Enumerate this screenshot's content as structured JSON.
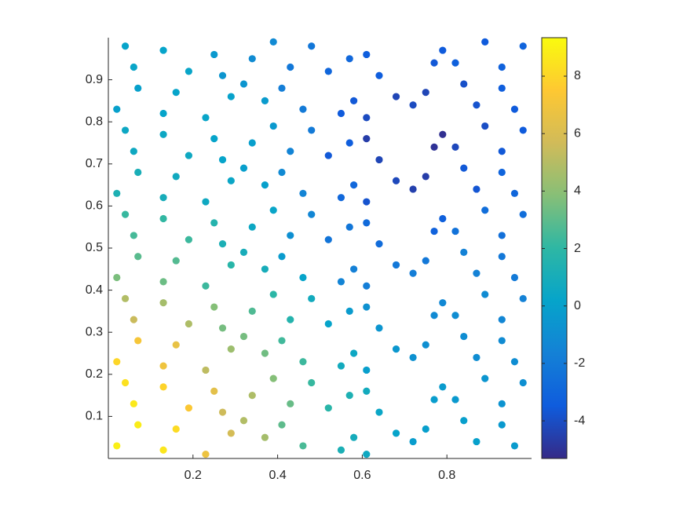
{
  "chart_data": {
    "type": "scatter",
    "xlim": [
      0,
      1
    ],
    "ylim": [
      0,
      1
    ],
    "xticks": [
      0.2,
      0.4,
      0.6,
      0.8
    ],
    "yticks": [
      0.1,
      0.2,
      0.3,
      0.4,
      0.5,
      0.6,
      0.7,
      0.8,
      0.9
    ],
    "clim": [
      -5.31,
      9.34
    ],
    "cticks": [
      -4,
      -2,
      0,
      2,
      4,
      6,
      8
    ],
    "colormap": [
      "#352a87",
      "#0f5cdd",
      "#1481d6",
      "#06a4ca",
      "#2eb7a4",
      "#87bf77",
      "#d1bb59",
      "#fec832",
      "#f9fb0e"
    ],
    "x": [
      0.02,
      0.16,
      0.23,
      0.37,
      0.41,
      0.55,
      0.68,
      0.72,
      0.84,
      0.96,
      0.06,
      0.13,
      0.27,
      0.34,
      0.48,
      0.52,
      0.61,
      0.77,
      0.89,
      0.93,
      0.02,
      0.16,
      0.23,
      0.37,
      0.41,
      0.55,
      0.68,
      0.72,
      0.84,
      0.96,
      0.06,
      0.13,
      0.27,
      0.34,
      0.48,
      0.52,
      0.61,
      0.77,
      0.89,
      0.93,
      0.02,
      0.16,
      0.23,
      0.37,
      0.41,
      0.55,
      0.68,
      0.72,
      0.84,
      0.96,
      0.06,
      0.13,
      0.27,
      0.34,
      0.48,
      0.52,
      0.61,
      0.77,
      0.89,
      0.93,
      0.02,
      0.16,
      0.23,
      0.37,
      0.41,
      0.55,
      0.68,
      0.72,
      0.84,
      0.96,
      0.06,
      0.13,
      0.27,
      0.34,
      0.48,
      0.52,
      0.61,
      0.77,
      0.89,
      0.93,
      0.02,
      0.16,
      0.23,
      0.37,
      0.41,
      0.55,
      0.68,
      0.72,
      0.84,
      0.96,
      0.06,
      0.13,
      0.27,
      0.34,
      0.48,
      0.52,
      0.61,
      0.77,
      0.89,
      0.93,
      0.07,
      0.13,
      0.29,
      0.32,
      0.46,
      0.58,
      0.61,
      0.75,
      0.87,
      0.93,
      0.04,
      0.19,
      0.25,
      0.39,
      0.43,
      0.57,
      0.64,
      0.79,
      0.82,
      0.98,
      0.07,
      0.13,
      0.29,
      0.32,
      0.46,
      0.58,
      0.61,
      0.75,
      0.87,
      0.93,
      0.04,
      0.19,
      0.25,
      0.39,
      0.43,
      0.57,
      0.64,
      0.79,
      0.82,
      0.98,
      0.07,
      0.13,
      0.29,
      0.32,
      0.46,
      0.58,
      0.61,
      0.75,
      0.87,
      0.93,
      0.04,
      0.19,
      0.25,
      0.39,
      0.43,
      0.57,
      0.64,
      0.79,
      0.82,
      0.98,
      0.07,
      0.13,
      0.29,
      0.32,
      0.46,
      0.58,
      0.61,
      0.75,
      0.87,
      0.93,
      0.04,
      0.19,
      0.25,
      0.39,
      0.43,
      0.57,
      0.64,
      0.79,
      0.82,
      0.98,
      0.07,
      0.13,
      0.29,
      0.32,
      0.46,
      0.58,
      0.61,
      0.75,
      0.87,
      0.93,
      0.04,
      0.19,
      0.25,
      0.39,
      0.43,
      0.57,
      0.64,
      0.79,
      0.82,
      0.98
    ],
    "y": [
      0.03,
      0.07,
      0.01,
      0.05,
      0.08,
      0.02,
      0.06,
      0.04,
      0.09,
      0.03,
      0.13,
      0.17,
      0.11,
      0.15,
      0.18,
      0.12,
      0.16,
      0.14,
      0.19,
      0.13,
      0.23,
      0.27,
      0.21,
      0.25,
      0.28,
      0.22,
      0.26,
      0.24,
      0.29,
      0.23,
      0.33,
      0.37,
      0.31,
      0.35,
      0.38,
      0.32,
      0.36,
      0.34,
      0.39,
      0.33,
      0.43,
      0.47,
      0.41,
      0.45,
      0.48,
      0.42,
      0.46,
      0.44,
      0.49,
      0.43,
      0.53,
      0.57,
      0.51,
      0.55,
      0.58,
      0.52,
      0.56,
      0.54,
      0.59,
      0.53,
      0.63,
      0.67,
      0.61,
      0.65,
      0.68,
      0.62,
      0.66,
      0.64,
      0.69,
      0.63,
      0.73,
      0.77,
      0.71,
      0.75,
      0.78,
      0.72,
      0.76,
      0.74,
      0.79,
      0.73,
      0.83,
      0.87,
      0.81,
      0.85,
      0.88,
      0.82,
      0.86,
      0.84,
      0.89,
      0.83,
      0.93,
      0.97,
      0.91,
      0.95,
      0.98,
      0.92,
      0.96,
      0.94,
      0.99,
      0.93,
      0.08,
      0.02,
      0.06,
      0.09,
      0.03,
      0.05,
      0.01,
      0.07,
      0.04,
      0.08,
      0.18,
      0.12,
      0.16,
      0.19,
      0.13,
      0.15,
      0.11,
      0.17,
      0.14,
      0.18,
      0.28,
      0.22,
      0.26,
      0.29,
      0.23,
      0.25,
      0.21,
      0.27,
      0.24,
      0.28,
      0.38,
      0.32,
      0.36,
      0.39,
      0.33,
      0.35,
      0.31,
      0.37,
      0.34,
      0.38,
      0.48,
      0.42,
      0.46,
      0.49,
      0.43,
      0.45,
      0.41,
      0.47,
      0.44,
      0.48,
      0.58,
      0.52,
      0.56,
      0.59,
      0.53,
      0.55,
      0.51,
      0.57,
      0.54,
      0.58,
      0.68,
      0.62,
      0.66,
      0.69,
      0.63,
      0.65,
      0.61,
      0.67,
      0.64,
      0.68,
      0.78,
      0.72,
      0.76,
      0.79,
      0.73,
      0.75,
      0.71,
      0.77,
      0.74,
      0.78,
      0.88,
      0.82,
      0.86,
      0.89,
      0.83,
      0.85,
      0.81,
      0.87,
      0.84,
      0.88,
      0.98,
      0.92,
      0.96,
      0.99,
      0.93,
      0.95,
      0.91,
      0.97,
      0.94,
      0.98
    ],
    "color_values": [
      8.9,
      8.2,
      6.8,
      4.6,
      3,
      1.2,
      0.2,
      -0.2,
      -0.1,
      -0.3,
      8.7,
      7.9,
      5.6,
      4.8,
      2.2,
      1.8,
      0.8,
      -0.2,
      -0.6,
      -0.7,
      8,
      6.6,
      5.2,
      3.4,
      2.4,
      0.8,
      -0.5,
      -0.8,
      -1,
      -1,
      5.5,
      4.6,
      3.5,
      2.7,
      0.8,
      0.2,
      -0.8,
      -1.2,
      -1.1,
      -1.4,
      3.6,
      2.8,
      2.3,
      1,
      -0.3,
      -1.5,
      -2.1,
      -1.8,
      -1.6,
      -2,
      2.5,
      2.1,
      1.2,
      0.5,
      -1.4,
      -2.3,
      -2.8,
      -3.2,
      -2.6,
      -2.5,
      1.3,
      0.7,
      0.6,
      0,
      -1.2,
      -2.9,
      -4.2,
      -4.5,
      -3.6,
      -3,
      0.6,
      0.5,
      0.2,
      -0.1,
      -2,
      -3.6,
      -4.6,
      -5,
      -4,
      -3.6,
      0,
      0.2,
      0.3,
      -0.3,
      -1.8,
      -3.5,
      -4.3,
      -4.1,
      -3.9,
      -3.5,
      0.3,
      0.2,
      -0.6,
      -1.1,
      -2.2,
      -3,
      -3.4,
      -3.6,
      -3.5,
      -3.2,
      8.8,
      8.6,
      5.8,
      4.9,
      2.6,
      0.9,
      0.6,
      -0.1,
      0,
      -0.4,
      8.4,
      7.4,
      6.4,
      3.8,
      3.2,
      1.3,
      0.4,
      -0.3,
      -0.4,
      -0.9,
      7.2,
      6.9,
      4.4,
      3.5,
      2.3,
      0.5,
      -0.1,
      -0.9,
      -1,
      -1.1,
      4.9,
      4.8,
      3.8,
      1.9,
      1.6,
      -0.3,
      -0.6,
      -1.3,
      -1,
      -1.6,
      2.9,
      3.3,
      1.8,
      1,
      0.2,
      -1.7,
      -1.8,
      -2.1,
      -1.6,
      -2.1,
      2.2,
      2.3,
      1.6,
      0.3,
      -0.9,
      -2.2,
      -2.7,
      -3.3,
      -2.4,
      -2.6,
      1.1,
      1,
      0.4,
      -0.1,
      -1.5,
      -2.9,
      -3.8,
      -4.6,
      -3.7,
      -3.1,
      0.5,
      0.6,
      0.2,
      -0.4,
      -1.5,
      -3.4,
      -4.3,
      -5.1,
      -4.2,
      -3.5,
      0,
      0.2,
      0.1,
      -0.6,
      -2,
      -3.6,
      -4.1,
      -4.3,
      -3.8,
      -3.4,
      0.2,
      0.3,
      -0.4,
      -1.2,
      -2.1,
      -2.9,
      -3.4,
      -3.5,
      -3.3,
      -3.1
    ]
  }
}
